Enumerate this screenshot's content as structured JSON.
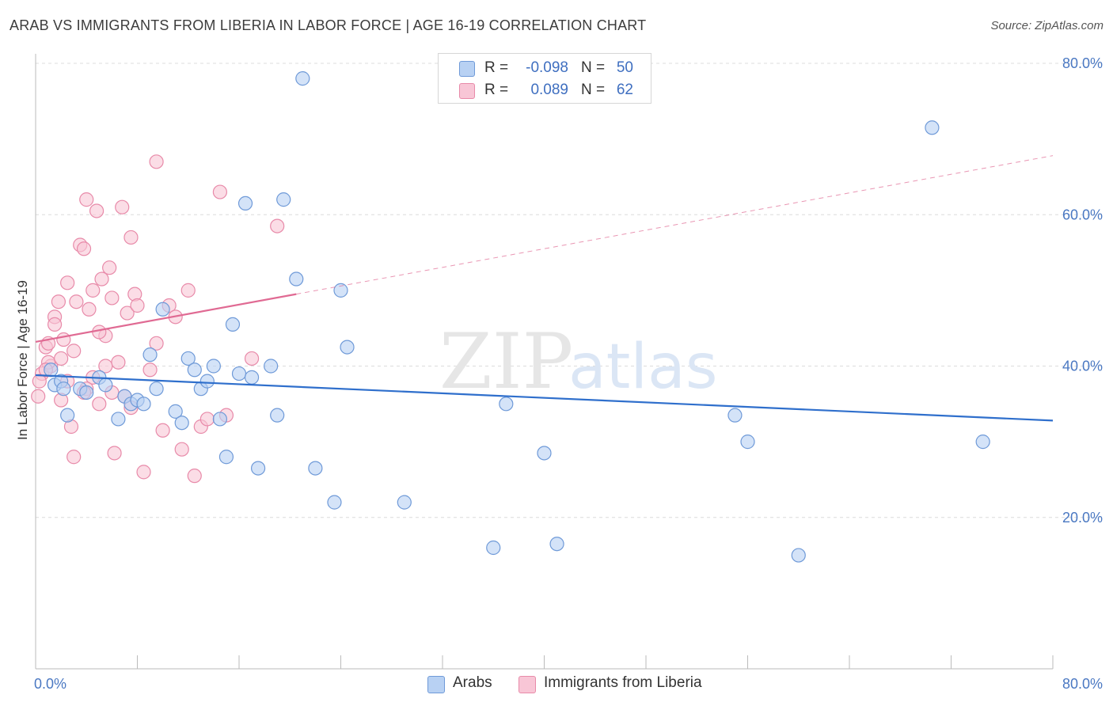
{
  "title": "ARAB VS IMMIGRANTS FROM LIBERIA IN LABOR FORCE | AGE 16-19 CORRELATION CHART",
  "source": "Source: ZipAtlas.com",
  "watermark": {
    "zip": "ZIP",
    "atlas": "atlas"
  },
  "colors": {
    "arabs_fill": "#b8d1f3",
    "arabs_stroke": "#6f9ad8",
    "arabs_line": "#2f6fcc",
    "liberia_fill": "#f8c6d6",
    "liberia_stroke": "#e88aa9",
    "liberia_line": "#e06a93",
    "tick_text": "#4a78c2",
    "grid": "#dcdcdc"
  },
  "legend": {
    "rows": [
      {
        "r_label": "R =",
        "r_value": "-0.098",
        "n_label": "N =",
        "n_value": "50"
      },
      {
        "r_label": "R =",
        "r_value": "0.089",
        "n_label": "N =",
        "n_value": "62"
      }
    ]
  },
  "bottom_legend": {
    "arabs": "Arabs",
    "liberia": "Immigrants from Liberia"
  },
  "chart_data": {
    "type": "scatter",
    "title": "ARAB VS IMMIGRANTS FROM LIBERIA IN LABOR FORCE | AGE 16-19 CORRELATION CHART",
    "xlabel": "",
    "ylabel": "In Labor Force | Age 16-19",
    "xlim": [
      0,
      80
    ],
    "ylim": [
      0,
      82
    ],
    "x_tick_labels": [
      "0.0%",
      "80.0%"
    ],
    "y_ticks": [
      20,
      40,
      60,
      80
    ],
    "y_tick_labels": [
      "20.0%",
      "40.0%",
      "60.0%",
      "80.0%"
    ],
    "grid": true,
    "legend_placement": "top-center",
    "series": [
      {
        "name": "Arabs",
        "r": -0.098,
        "n": 50,
        "trend": {
          "x": [
            0,
            80
          ],
          "y": [
            38.8,
            32.8
          ],
          "dashed_to": 80
        },
        "points": [
          [
            1.2,
            39.5
          ],
          [
            1.5,
            37.5
          ],
          [
            2.0,
            38.0
          ],
          [
            2.2,
            37.0
          ],
          [
            2.5,
            33.5
          ],
          [
            3.5,
            37.0
          ],
          [
            4.0,
            36.5
          ],
          [
            5.0,
            38.5
          ],
          [
            5.5,
            37.5
          ],
          [
            6.5,
            33.0
          ],
          [
            7.0,
            36.0
          ],
          [
            7.5,
            35.0
          ],
          [
            8.0,
            35.5
          ],
          [
            8.5,
            35.0
          ],
          [
            9.0,
            41.5
          ],
          [
            9.5,
            37.0
          ],
          [
            10.0,
            47.5
          ],
          [
            11.0,
            34.0
          ],
          [
            11.5,
            32.5
          ],
          [
            12.0,
            41.0
          ],
          [
            12.5,
            39.5
          ],
          [
            13.0,
            37.0
          ],
          [
            13.5,
            38.0
          ],
          [
            14.0,
            40.0
          ],
          [
            14.5,
            33.0
          ],
          [
            15.0,
            28.0
          ],
          [
            15.5,
            45.5
          ],
          [
            16.0,
            39.0
          ],
          [
            16.5,
            61.5
          ],
          [
            17.0,
            38.5
          ],
          [
            17.5,
            26.5
          ],
          [
            18.5,
            40.0
          ],
          [
            19.0,
            33.5
          ],
          [
            19.5,
            62.0
          ],
          [
            20.5,
            51.5
          ],
          [
            21.0,
            78.0
          ],
          [
            22.0,
            26.5
          ],
          [
            23.5,
            22.0
          ],
          [
            24.0,
            50.0
          ],
          [
            24.5,
            42.5
          ],
          [
            29.0,
            22.0
          ],
          [
            36.0,
            16.0
          ],
          [
            37.0,
            35.0
          ],
          [
            40.0,
            28.5
          ],
          [
            41.0,
            16.5
          ],
          [
            55.0,
            33.5
          ],
          [
            56.0,
            30.0
          ],
          [
            60.0,
            15.0
          ],
          [
            70.5,
            71.5
          ],
          [
            74.5,
            30.0
          ]
        ]
      },
      {
        "name": "Immigrants from Liberia",
        "r": 0.089,
        "n": 62,
        "trend": {
          "x": [
            0,
            80
          ],
          "y": [
            43.2,
            67.8
          ],
          "solid_until": 20.5
        },
        "points": [
          [
            0.2,
            36.0
          ],
          [
            0.5,
            39.0
          ],
          [
            0.8,
            42.5
          ],
          [
            1.0,
            43.0
          ],
          [
            1.2,
            40.0
          ],
          [
            1.5,
            46.5
          ],
          [
            1.8,
            48.5
          ],
          [
            2.0,
            41.0
          ],
          [
            2.2,
            43.5
          ],
          [
            2.5,
            51.0
          ],
          [
            2.8,
            32.0
          ],
          [
            3.0,
            28.0
          ],
          [
            3.2,
            48.5
          ],
          [
            3.5,
            56.0
          ],
          [
            3.8,
            55.5
          ],
          [
            4.0,
            62.0
          ],
          [
            4.2,
            47.5
          ],
          [
            4.5,
            38.5
          ],
          [
            4.8,
            60.5
          ],
          [
            5.0,
            35.0
          ],
          [
            5.2,
            51.5
          ],
          [
            5.5,
            44.0
          ],
          [
            5.8,
            53.0
          ],
          [
            6.0,
            49.0
          ],
          [
            6.2,
            28.5
          ],
          [
            6.5,
            40.5
          ],
          [
            6.8,
            61.0
          ],
          [
            7.0,
            36.0
          ],
          [
            7.2,
            47.0
          ],
          [
            7.5,
            57.0
          ],
          [
            7.8,
            49.5
          ],
          [
            8.0,
            48.0
          ],
          [
            8.5,
            26.0
          ],
          [
            9.0,
            39.5
          ],
          [
            9.5,
            67.0
          ],
          [
            10.0,
            31.5
          ],
          [
            10.5,
            48.0
          ],
          [
            11.0,
            46.5
          ],
          [
            11.5,
            29.0
          ],
          [
            12.0,
            50.0
          ],
          [
            12.5,
            25.5
          ],
          [
            13.0,
            32.0
          ],
          [
            14.5,
            63.0
          ],
          [
            15.0,
            33.5
          ],
          [
            17.0,
            41.0
          ],
          [
            19.0,
            58.5
          ],
          [
            0.3,
            38.0
          ],
          [
            1.0,
            40.5
          ],
          [
            2.0,
            35.5
          ],
          [
            3.0,
            42.0
          ],
          [
            4.0,
            37.0
          ],
          [
            5.0,
            44.5
          ],
          [
            6.0,
            36.5
          ],
          [
            3.8,
            36.5
          ],
          [
            2.5,
            38.0
          ],
          [
            1.5,
            45.5
          ],
          [
            4.5,
            50.0
          ],
          [
            0.8,
            39.5
          ],
          [
            5.5,
            40.0
          ],
          [
            7.5,
            34.5
          ],
          [
            9.5,
            43.0
          ],
          [
            13.5,
            33.0
          ]
        ]
      }
    ]
  }
}
